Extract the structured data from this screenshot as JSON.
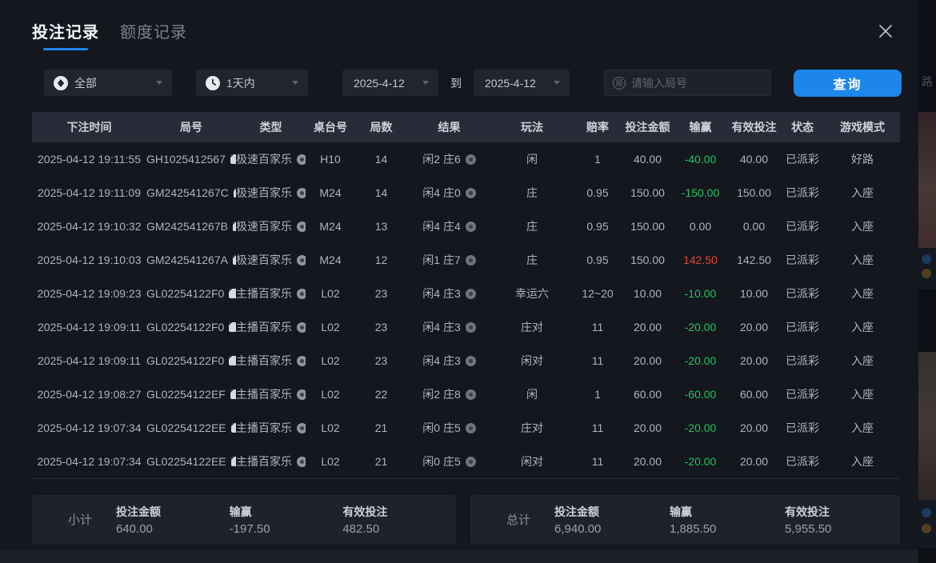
{
  "modal": {
    "tabs": [
      {
        "label": "投注记录",
        "active": true
      },
      {
        "label": "额度记录",
        "active": false
      }
    ]
  },
  "filters": {
    "category": {
      "value": "全部"
    },
    "period": {
      "value": "1天内"
    },
    "date_from": "2025-4-12",
    "to_label": "到",
    "date_to": "2025-4-12",
    "search_placeholder": "请输入局号",
    "search_icon_char": "局",
    "query_button": "查询"
  },
  "table": {
    "headers": [
      "下注时间",
      "局号",
      "类型",
      "桌台号",
      "局数",
      "结果",
      "玩法",
      "赔率",
      "投注金额",
      "输赢",
      "有效投注",
      "状态",
      "游戏模式"
    ],
    "rows": [
      {
        "time": "2025-04-12 19:11:55",
        "round_id": "GH1025412567",
        "type": "极速百家乐",
        "table_no": "H10",
        "rounds": "14",
        "result": "闲2 庄6",
        "play": "闲",
        "odds": "1",
        "bet": "40.00",
        "winloss": "-40.00",
        "winloss_color": "green",
        "valid": "40.00",
        "status": "已派彩",
        "mode": "好路"
      },
      {
        "time": "2025-04-12 19:11:09",
        "round_id": "GM242541267C",
        "type": "极速百家乐",
        "table_no": "M24",
        "rounds": "14",
        "result": "闲4 庄0",
        "play": "庄",
        "odds": "0.95",
        "bet": "150.00",
        "winloss": "-150.00",
        "winloss_color": "green",
        "valid": "150.00",
        "status": "已派彩",
        "mode": "入座"
      },
      {
        "time": "2025-04-12 19:10:32",
        "round_id": "GM242541267B",
        "type": "极速百家乐",
        "table_no": "M24",
        "rounds": "13",
        "result": "闲4 庄4",
        "play": "庄",
        "odds": "0.95",
        "bet": "150.00",
        "winloss": "0.00",
        "winloss_color": "plain",
        "valid": "0.00",
        "status": "已派彩",
        "mode": "入座"
      },
      {
        "time": "2025-04-12 19:10:03",
        "round_id": "GM242541267A",
        "type": "极速百家乐",
        "table_no": "M24",
        "rounds": "12",
        "result": "闲1 庄7",
        "play": "庄",
        "odds": "0.95",
        "bet": "150.00",
        "winloss": "142.50",
        "winloss_color": "red",
        "valid": "142.50",
        "status": "已派彩",
        "mode": "入座"
      },
      {
        "time": "2025-04-12 19:09:23",
        "round_id": "GL02254122F0",
        "type": "主播百家乐",
        "table_no": "L02",
        "rounds": "23",
        "result": "闲4 庄3",
        "play": "幸运六",
        "odds": "12~20",
        "bet": "10.00",
        "winloss": "-10.00",
        "winloss_color": "green",
        "valid": "10.00",
        "status": "已派彩",
        "mode": "入座"
      },
      {
        "time": "2025-04-12 19:09:11",
        "round_id": "GL02254122F0",
        "type": "主播百家乐",
        "table_no": "L02",
        "rounds": "23",
        "result": "闲4 庄3",
        "play": "庄对",
        "odds": "11",
        "bet": "20.00",
        "winloss": "-20.00",
        "winloss_color": "green",
        "valid": "20.00",
        "status": "已派彩",
        "mode": "入座"
      },
      {
        "time": "2025-04-12 19:09:11",
        "round_id": "GL02254122F0",
        "type": "主播百家乐",
        "table_no": "L02",
        "rounds": "23",
        "result": "闲4 庄3",
        "play": "闲对",
        "odds": "11",
        "bet": "20.00",
        "winloss": "-20.00",
        "winloss_color": "green",
        "valid": "20.00",
        "status": "已派彩",
        "mode": "入座"
      },
      {
        "time": "2025-04-12 19:08:27",
        "round_id": "GL02254122EF",
        "type": "主播百家乐",
        "table_no": "L02",
        "rounds": "22",
        "result": "闲2 庄8",
        "play": "闲",
        "odds": "1",
        "bet": "60.00",
        "winloss": "-60.00",
        "winloss_color": "green",
        "valid": "60.00",
        "status": "已派彩",
        "mode": "入座"
      },
      {
        "time": "2025-04-12 19:07:34",
        "round_id": "GL02254122EE",
        "type": "主播百家乐",
        "table_no": "L02",
        "rounds": "21",
        "result": "闲0 庄5",
        "play": "庄对",
        "odds": "11",
        "bet": "20.00",
        "winloss": "-20.00",
        "winloss_color": "green",
        "valid": "20.00",
        "status": "已派彩",
        "mode": "入座"
      },
      {
        "time": "2025-04-12 19:07:34",
        "round_id": "GL02254122EE",
        "type": "主播百家乐",
        "table_no": "L02",
        "rounds": "21",
        "result": "闲0 庄5",
        "play": "闲对",
        "odds": "11",
        "bet": "20.00",
        "winloss": "-20.00",
        "winloss_color": "green",
        "valid": "20.00",
        "status": "已派彩",
        "mode": "入座"
      }
    ]
  },
  "summary": {
    "subtotal": {
      "label": "小计",
      "bet_label": "投注金额",
      "bet": "640.00",
      "winloss_label": "输赢",
      "winloss": "-197.50",
      "winloss_color": "green",
      "valid_label": "有效投注",
      "valid": "482.50"
    },
    "total": {
      "label": "总计",
      "bet_label": "投注金额",
      "bet": "6,940.00",
      "winloss_label": "输赢",
      "winloss": "1,885.50",
      "winloss_color": "red",
      "valid_label": "有效投注",
      "valid": "5,955.50"
    }
  },
  "background": {
    "partial_text": "路"
  },
  "colors": {
    "accent": "#1d86ea",
    "green": "#1fc45f",
    "red": "#e0453c"
  }
}
